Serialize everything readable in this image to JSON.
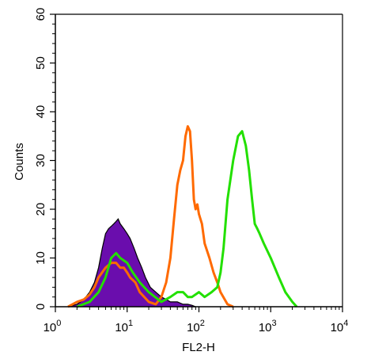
{
  "chart_data": {
    "type": "area",
    "xlabel": "FL2-H",
    "ylabel": "Counts",
    "xscale": "log",
    "xlim": [
      1,
      10000
    ],
    "ylim": [
      0,
      60
    ],
    "x_ticks": [
      {
        "value": 1,
        "base": "10",
        "exp": "0"
      },
      {
        "value": 10,
        "base": "10",
        "exp": "1"
      },
      {
        "value": 100,
        "base": "10",
        "exp": "2"
      },
      {
        "value": 1000,
        "base": "10",
        "exp": "3"
      },
      {
        "value": 10000,
        "base": "10",
        "exp": "4"
      }
    ],
    "y_ticks": [
      0,
      10,
      20,
      30,
      40,
      50,
      60
    ],
    "grid": false,
    "legend": "none",
    "series": [
      {
        "style": "filled",
        "fill": "#6a0dad",
        "stroke": "#000000",
        "x": [
          1.5,
          2.0,
          2.5,
          3.0,
          3.5,
          4.0,
          4.5,
          5.0,
          5.5,
          6.0,
          6.5,
          7.0,
          7.5,
          8.0,
          9.0,
          10.0,
          11.0,
          12.5,
          14.0,
          16.0,
          18.0,
          21.0,
          25.0,
          30.0,
          35.0,
          40.0,
          45.0,
          50.0,
          60.0,
          70.0,
          80.0,
          90.0
        ],
        "values": [
          0,
          0.5,
          1.5,
          3,
          5,
          8,
          12,
          15,
          16,
          16.5,
          17,
          17.5,
          18,
          17,
          16,
          15,
          14,
          12,
          10,
          8,
          6,
          4,
          3,
          2,
          1.5,
          1,
          1,
          1,
          0.5,
          0.5,
          0.3,
          0
        ]
      },
      {
        "style": "line",
        "color": "#ff6a00",
        "x": [
          1.5,
          2.0,
          2.5,
          3.0,
          3.5,
          4.0,
          5.0,
          6.0,
          7.0,
          8.0,
          9.0,
          10.0,
          11.0,
          13.0,
          15.0,
          20.0,
          25.0,
          30.0,
          35.0,
          40.0,
          45.0,
          50.0,
          55.0,
          60.0,
          65.0,
          70.0,
          75.0,
          80.0,
          85.0,
          90.0,
          95.0,
          100.0,
          110.0,
          120.0,
          140.0,
          160.0,
          180.0,
          200.0,
          250.0,
          300.0
        ],
        "values": [
          0,
          1,
          1.5,
          2.5,
          4,
          6,
          8,
          9,
          9,
          8,
          8,
          7,
          6,
          5,
          3,
          1,
          0.5,
          2,
          5,
          10,
          18,
          25,
          28,
          30,
          35,
          37,
          36,
          30,
          22,
          20,
          21,
          19,
          17,
          13,
          10,
          7,
          5,
          3,
          0.5,
          0
        ]
      },
      {
        "style": "line",
        "color": "#22e000",
        "x": [
          2.0,
          3.0,
          4.0,
          5.0,
          6.0,
          7.0,
          8.0,
          10.0,
          12.0,
          15.0,
          20.0,
          30.0,
          40.0,
          50.0,
          60.0,
          70.0,
          80.0,
          100.0,
          120.0,
          150.0,
          180.0,
          200.0,
          220.0,
          250.0,
          300.0,
          350.0,
          400.0,
          450.0,
          500.0,
          550.0,
          600.0,
          650.0,
          700.0,
          800.0,
          1000.0,
          1300.0,
          1600.0,
          2000.0,
          2300.0
        ],
        "values": [
          0,
          1,
          3,
          6,
          10,
          11,
          10,
          9,
          7,
          5,
          3,
          1,
          2,
          3,
          3,
          2,
          2,
          3,
          2,
          3,
          4,
          7,
          12,
          22,
          30,
          35,
          36,
          33,
          28,
          22,
          17,
          16,
          15,
          13,
          10,
          6,
          3,
          1,
          0
        ]
      }
    ]
  }
}
